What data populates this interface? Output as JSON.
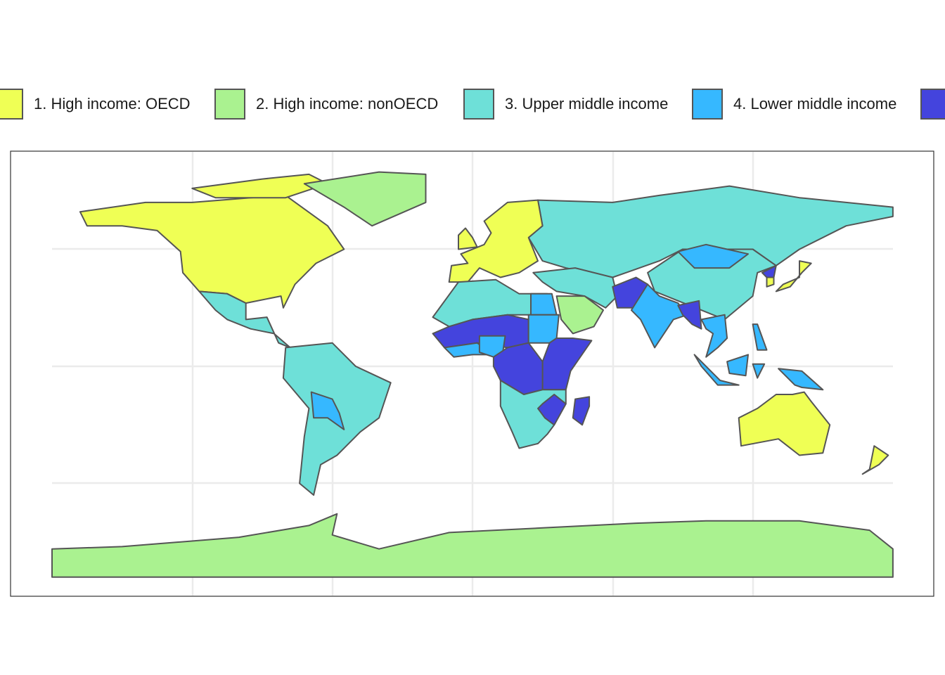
{
  "legend": [
    {
      "label": "1. High income: OECD",
      "color": "#efff55"
    },
    {
      "label": "2. High income: nonOECD",
      "color": "#aaf290"
    },
    {
      "label": "3. Upper middle income",
      "color": "#6ee0d8"
    },
    {
      "label": "4. Lower middle income",
      "color": "#36b8ff"
    },
    {
      "color": "#4444dd"
    }
  ]
}
